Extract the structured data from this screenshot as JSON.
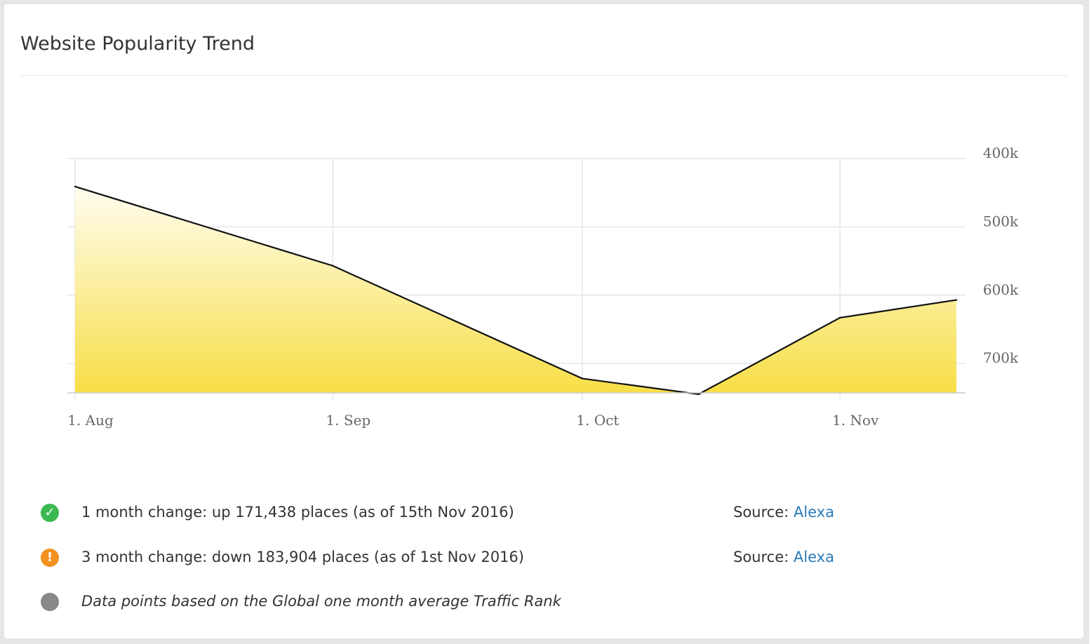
{
  "card": {
    "title": "Website Popularity Trend"
  },
  "colors": {
    "line": "#111111",
    "fill_top": "#fffdf0",
    "fill_bottom": "#f7de45",
    "grid": "#e6e6e6",
    "up_icon": "#3cb850",
    "warn_icon": "#f3921e",
    "note_icon": "#888888",
    "link": "#2a7ab9"
  },
  "chart_data": {
    "type": "area",
    "title": "",
    "xlabel": "",
    "ylabel": "",
    "y_reversed": true,
    "y_axis_position": "right",
    "ylim": [
      400000,
      743000
    ],
    "y_ticks": [
      {
        "value": 400000,
        "label": "400k"
      },
      {
        "value": 500000,
        "label": "500k"
      },
      {
        "value": 600000,
        "label": "600k"
      },
      {
        "value": 700000,
        "label": "700k"
      }
    ],
    "x_ticks": [
      "1. Aug",
      "1. Sep",
      "1. Oct",
      "1. Nov"
    ],
    "xlim": [
      "2016-08-01",
      "2016-11-15"
    ],
    "grid": true,
    "series": [
      {
        "x": [
          "2016-08-01",
          "2016-09-01",
          "2016-10-01",
          "2016-10-15",
          "2016-11-01",
          "2016-11-15"
        ],
        "y": [
          441000,
          557000,
          722000,
          745000,
          633000,
          607000
        ]
      }
    ]
  },
  "info": {
    "rows": [
      {
        "icon": "check-icon",
        "glyph": "✓",
        "text": "1 month change: up 171,438 places (as of 15th Nov 2016)",
        "source_label": "Source:",
        "source_link": "Alexa"
      },
      {
        "icon": "exclamation-icon",
        "glyph": "!",
        "text": "3 month change: down 183,904 places (as of 1st Nov 2016)",
        "source_label": "Source:",
        "source_link": "Alexa"
      },
      {
        "icon": "dot-icon",
        "glyph": "",
        "text": "Data points based on the Global one month average Traffic Rank"
      }
    ]
  }
}
